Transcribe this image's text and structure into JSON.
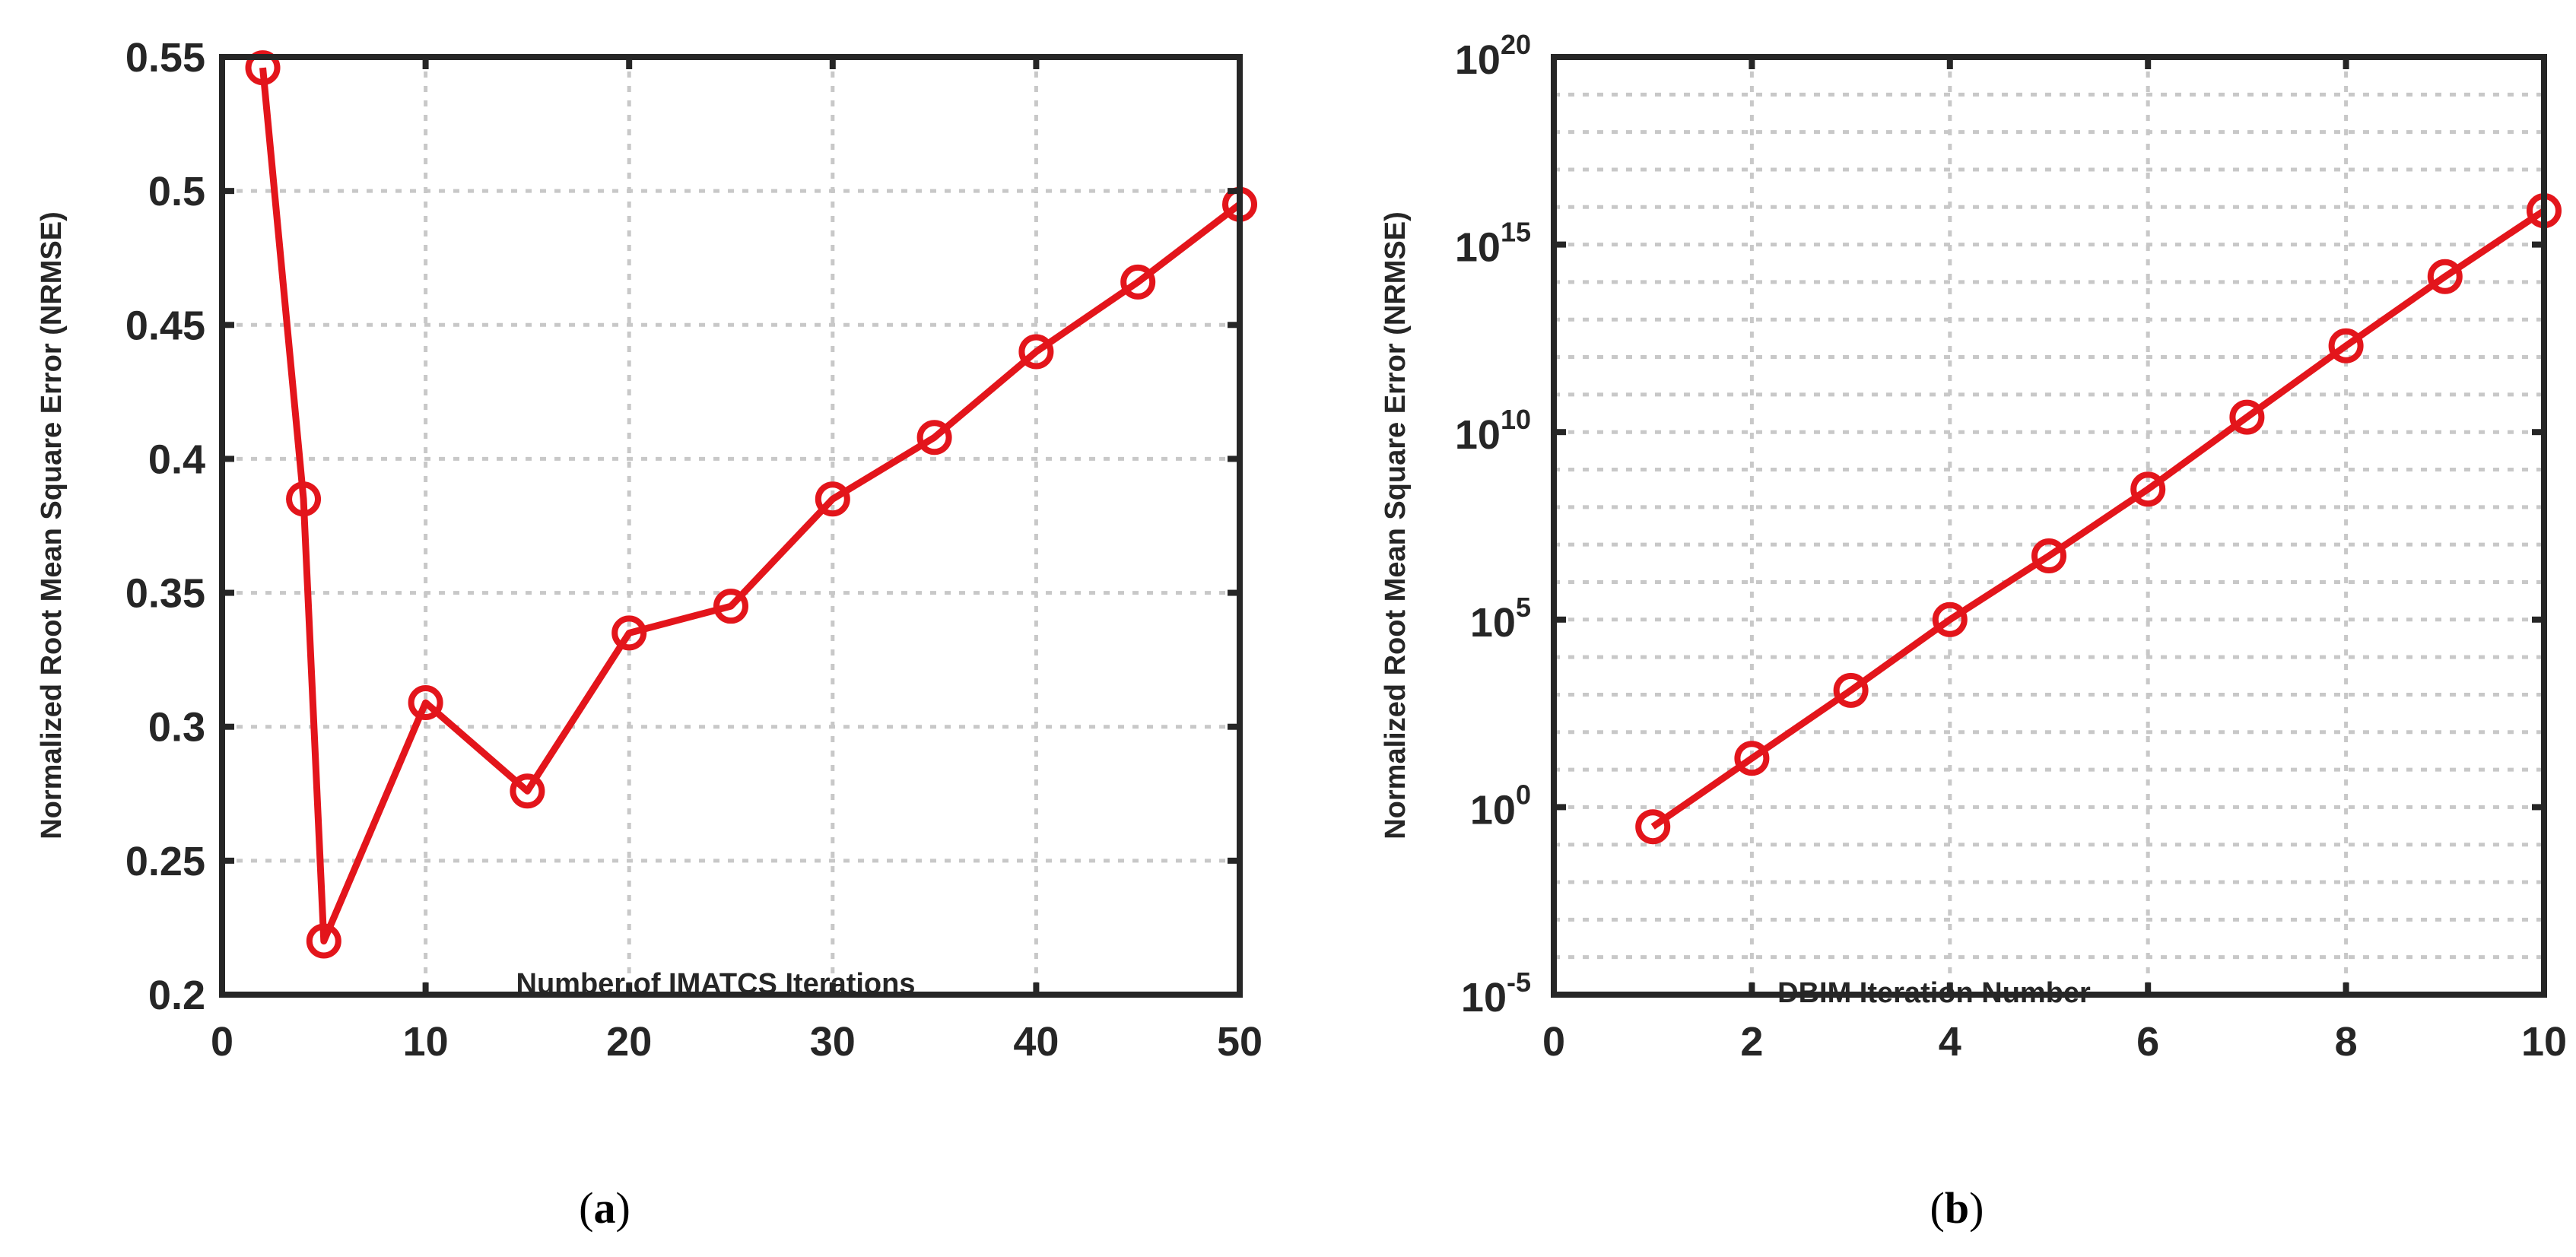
{
  "chart_data": [
    {
      "type": "line",
      "xlabel": "Number of IMATCS Iterations",
      "ylabel": "Normalized Root Mean Square Error (NRMSE)",
      "xlim": [
        0,
        50
      ],
      "ylim": [
        0.2,
        0.55
      ],
      "yscale": "linear",
      "grid": true,
      "xticks": [
        "0",
        "10",
        "20",
        "30",
        "40",
        "50"
      ],
      "yticks": [
        "0.2",
        "0.25",
        "0.3",
        "0.35",
        "0.4",
        "0.45",
        "0.5",
        "0.55"
      ],
      "series": [
        {
          "x": [
            2,
            4,
            5,
            10,
            15,
            20,
            25,
            30,
            35,
            40,
            45,
            50
          ],
          "y": [
            0.546,
            0.385,
            0.22,
            0.309,
            0.276,
            0.335,
            0.345,
            0.385,
            0.408,
            0.44,
            0.466,
            0.495
          ],
          "color": "#e3151b",
          "marker": "circle"
        }
      ],
      "caption": "a"
    },
    {
      "type": "line",
      "xlabel": "DBIM Iteration Number",
      "ylabel": "Normalized Root Mean Square Error (NRMSE)",
      "xlim": [
        0,
        10
      ],
      "ylim": [
        1e-05,
        1e+20
      ],
      "yscale": "log",
      "grid": true,
      "xticks": [
        "0",
        "2",
        "4",
        "6",
        "8",
        "10"
      ],
      "yticks": [
        {
          "base": "10",
          "exp": "-5"
        },
        {
          "base": "10",
          "exp": "0"
        },
        {
          "base": "10",
          "exp": "5"
        },
        {
          "base": "10",
          "exp": "10"
        },
        {
          "base": "10",
          "exp": "15"
        },
        {
          "base": "10",
          "exp": "20"
        }
      ],
      "series": [
        {
          "x": [
            1,
            2,
            3,
            4,
            5,
            6,
            7,
            8,
            9,
            10
          ],
          "y": [
            0.3,
            20,
            1300,
            100000,
            5000000.0,
            300000000.0,
            25000000000.0,
            2000000000000.0,
            140000000000000.0,
            8000000000000000.0
          ],
          "color": "#e3151b",
          "marker": "circle"
        }
      ],
      "caption": "b"
    }
  ]
}
